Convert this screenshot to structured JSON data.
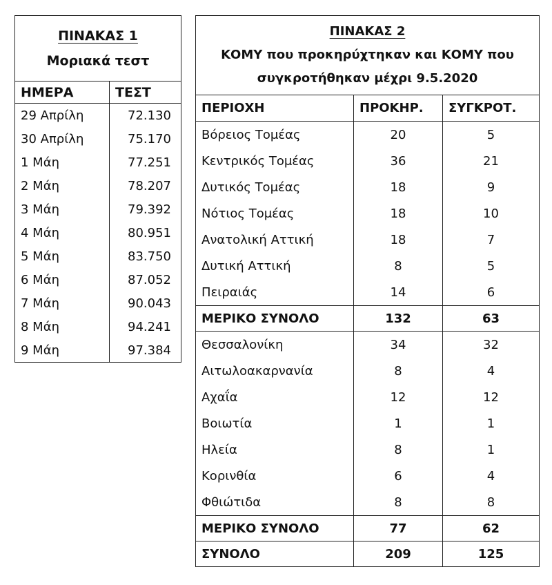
{
  "table1": {
    "title": "ΠΙΝΑΚΑΣ 1",
    "subtitle": "Μοριακά τεστ",
    "headers": [
      "ΗΜΕΡΑ",
      "ΤΕΣΤ"
    ],
    "rows": [
      [
        "29 Απρίλη",
        "72.130"
      ],
      [
        "30 Απρίλη",
        "75.170"
      ],
      [
        "1 Μάη",
        "77.251"
      ],
      [
        "2 Μάη",
        "78.207"
      ],
      [
        "3 Μάη",
        "79.392"
      ],
      [
        "4 Μάη",
        "80.951"
      ],
      [
        "5 Μάη",
        "83.750"
      ],
      [
        "6 Μάη",
        "87.052"
      ],
      [
        "7 Μάη",
        "90.043"
      ],
      [
        "8 Μάη",
        "94.241"
      ],
      [
        "9 Μάη",
        "97.384"
      ]
    ]
  },
  "table2": {
    "title": "ΠΙΝΑΚΑΣ 2",
    "subtitle_line1": "ΚΟΜΥ που προκηρύχτηκαν και ΚΟΜΥ που",
    "subtitle_line2": "συγκροτήθηκαν μέχρι 9.5.2020",
    "headers": [
      "ΠΕΡΙΟΧΗ",
      "ΠΡΟΚΗΡ.",
      "ΣΥΓΚΡΟΤ."
    ],
    "group1": [
      [
        "Βόρειος Τομέας",
        "20",
        "5"
      ],
      [
        "Κεντρικός Τομέας",
        "36",
        "21"
      ],
      [
        "Δυτικός Τομέας",
        "18",
        "9"
      ],
      [
        "Νότιος Τομέας",
        "18",
        "10"
      ],
      [
        "Ανατολική Αττική",
        "18",
        "7"
      ],
      [
        "Δυτική Αττική",
        "8",
        "5"
      ],
      [
        "Πειραιάς",
        "14",
        "6"
      ]
    ],
    "subtotal1": [
      "ΜΕΡΙΚΟ ΣΥΝΟΛΟ",
      "132",
      "63"
    ],
    "group2": [
      [
        "Θεσσαλονίκη",
        "34",
        "32"
      ],
      [
        "Αιτωλοακαρνανία",
        "8",
        "4"
      ],
      [
        "Αχαΐα",
        "12",
        "12"
      ],
      [
        "Βοιωτία",
        "1",
        "1"
      ],
      [
        "Ηλεία",
        "8",
        "1"
      ],
      [
        "Κορινθία",
        "6",
        "4"
      ],
      [
        "Φθιώτιδα",
        "8",
        "8"
      ]
    ],
    "subtotal2": [
      "ΜΕΡΙΚΟ ΣΥΝΟΛΟ",
      "77",
      "62"
    ],
    "total": [
      "ΣΥΝΟΛΟ",
      "209",
      "125"
    ]
  }
}
